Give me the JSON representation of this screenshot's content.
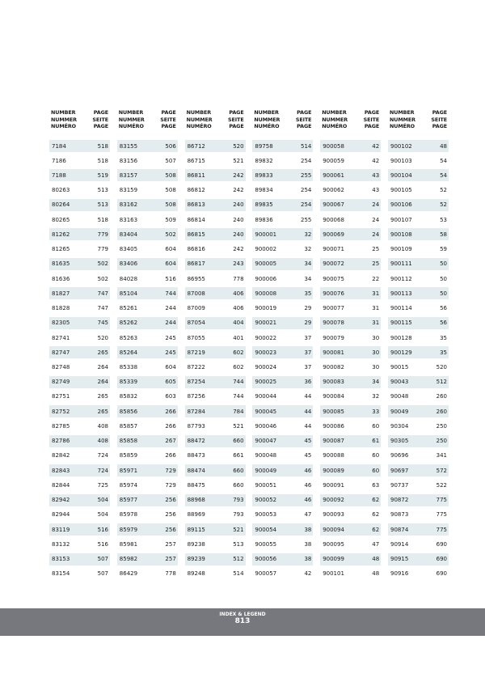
{
  "header": {
    "number": "NUMBER\nNUMMER\nNUMÉRO",
    "page": "PAGE\nSEITE\nPAGE"
  },
  "colors": {
    "row_shade": "#e3ecee",
    "footer_band": "#77787d"
  },
  "columns": [
    [
      [
        "7184",
        "518"
      ],
      [
        "7186",
        "518"
      ],
      [
        "7188",
        "519"
      ],
      [
        "80263",
        "513"
      ],
      [
        "80264",
        "513"
      ],
      [
        "80265",
        "518"
      ],
      [
        "81262",
        "779"
      ],
      [
        "81265",
        "779"
      ],
      [
        "81635",
        "502"
      ],
      [
        "81636",
        "502"
      ],
      [
        "81827",
        "747"
      ],
      [
        "81828",
        "747"
      ],
      [
        "82305",
        "745"
      ],
      [
        "82741",
        "520"
      ],
      [
        "82747",
        "265"
      ],
      [
        "82748",
        "264"
      ],
      [
        "82749",
        "264"
      ],
      [
        "82751",
        "265"
      ],
      [
        "82752",
        "265"
      ],
      [
        "82785",
        "408"
      ],
      [
        "82786",
        "408"
      ],
      [
        "82842",
        "724"
      ],
      [
        "82843",
        "724"
      ],
      [
        "82844",
        "725"
      ],
      [
        "82942",
        "504"
      ],
      [
        "82944",
        "504"
      ],
      [
        "83119",
        "516"
      ],
      [
        "83132",
        "516"
      ],
      [
        "83153",
        "507"
      ],
      [
        "83154",
        "507"
      ]
    ],
    [
      [
        "83155",
        "506"
      ],
      [
        "83156",
        "507"
      ],
      [
        "83157",
        "508"
      ],
      [
        "83159",
        "508"
      ],
      [
        "83162",
        "508"
      ],
      [
        "83163",
        "509"
      ],
      [
        "83404",
        "502"
      ],
      [
        "83405",
        "604"
      ],
      [
        "83406",
        "604"
      ],
      [
        "84028",
        "516"
      ],
      [
        "85104",
        "744"
      ],
      [
        "85261",
        "244"
      ],
      [
        "85262",
        "244"
      ],
      [
        "85263",
        "245"
      ],
      [
        "85264",
        "245"
      ],
      [
        "85338",
        "604"
      ],
      [
        "85339",
        "605"
      ],
      [
        "85832",
        "603"
      ],
      [
        "85856",
        "266"
      ],
      [
        "85857",
        "266"
      ],
      [
        "85858",
        "267"
      ],
      [
        "85859",
        "266"
      ],
      [
        "85971",
        "729"
      ],
      [
        "85974",
        "729"
      ],
      [
        "85977",
        "256"
      ],
      [
        "85978",
        "256"
      ],
      [
        "85979",
        "256"
      ],
      [
        "85981",
        "257"
      ],
      [
        "85982",
        "257"
      ],
      [
        "86429",
        "778"
      ]
    ],
    [
      [
        "86712",
        "520"
      ],
      [
        "86715",
        "521"
      ],
      [
        "86811",
        "242"
      ],
      [
        "86812",
        "242"
      ],
      [
        "86813",
        "240"
      ],
      [
        "86814",
        "240"
      ],
      [
        "86815",
        "240"
      ],
      [
        "86816",
        "242"
      ],
      [
        "86817",
        "243"
      ],
      [
        "86955",
        "778"
      ],
      [
        "87008",
        "406"
      ],
      [
        "87009",
        "406"
      ],
      [
        "87054",
        "404"
      ],
      [
        "87055",
        "401"
      ],
      [
        "87219",
        "602"
      ],
      [
        "87222",
        "602"
      ],
      [
        "87254",
        "744"
      ],
      [
        "87256",
        "744"
      ],
      [
        "87284",
        "784"
      ],
      [
        "87793",
        "521"
      ],
      [
        "88472",
        "660"
      ],
      [
        "88473",
        "661"
      ],
      [
        "88474",
        "660"
      ],
      [
        "88475",
        "660"
      ],
      [
        "88968",
        "793"
      ],
      [
        "88969",
        "793"
      ],
      [
        "89115",
        "521"
      ],
      [
        "89238",
        "513"
      ],
      [
        "89239",
        "512"
      ],
      [
        "89248",
        "514"
      ]
    ],
    [
      [
        "89758",
        "514"
      ],
      [
        "89832",
        "254"
      ],
      [
        "89833",
        "255"
      ],
      [
        "89834",
        "254"
      ],
      [
        "89835",
        "254"
      ],
      [
        "89836",
        "255"
      ],
      [
        "900001",
        "32"
      ],
      [
        "900002",
        "32"
      ],
      [
        "900005",
        "34"
      ],
      [
        "900006",
        "34"
      ],
      [
        "900008",
        "35"
      ],
      [
        "900019",
        "29"
      ],
      [
        "900021",
        "29"
      ],
      [
        "900022",
        "37"
      ],
      [
        "900023",
        "37"
      ],
      [
        "900024",
        "37"
      ],
      [
        "900025",
        "36"
      ],
      [
        "900044",
        "44"
      ],
      [
        "900045",
        "44"
      ],
      [
        "900046",
        "44"
      ],
      [
        "900047",
        "45"
      ],
      [
        "900048",
        "45"
      ],
      [
        "900049",
        "46"
      ],
      [
        "900051",
        "46"
      ],
      [
        "900052",
        "46"
      ],
      [
        "900053",
        "47"
      ],
      [
        "900054",
        "38"
      ],
      [
        "900055",
        "38"
      ],
      [
        "900056",
        "38"
      ],
      [
        "900057",
        "42"
      ]
    ],
    [
      [
        "900058",
        "42"
      ],
      [
        "900059",
        "42"
      ],
      [
        "900061",
        "43"
      ],
      [
        "900062",
        "43"
      ],
      [
        "900067",
        "24"
      ],
      [
        "900068",
        "24"
      ],
      [
        "900069",
        "24"
      ],
      [
        "900071",
        "25"
      ],
      [
        "900072",
        "25"
      ],
      [
        "900075",
        "22"
      ],
      [
        "900076",
        "31"
      ],
      [
        "900077",
        "31"
      ],
      [
        "900078",
        "31"
      ],
      [
        "900079",
        "30"
      ],
      [
        "900081",
        "30"
      ],
      [
        "900082",
        "30"
      ],
      [
        "900083",
        "34"
      ],
      [
        "900084",
        "32"
      ],
      [
        "900085",
        "33"
      ],
      [
        "900086",
        "60"
      ],
      [
        "900087",
        "61"
      ],
      [
        "900088",
        "60"
      ],
      [
        "900089",
        "60"
      ],
      [
        "900091",
        "63"
      ],
      [
        "900092",
        "62"
      ],
      [
        "900093",
        "62"
      ],
      [
        "900094",
        "62"
      ],
      [
        "900095",
        "47"
      ],
      [
        "900099",
        "48"
      ],
      [
        "900101",
        "48"
      ]
    ],
    [
      [
        "900102",
        "48"
      ],
      [
        "900103",
        "54"
      ],
      [
        "900104",
        "54"
      ],
      [
        "900105",
        "52"
      ],
      [
        "900106",
        "52"
      ],
      [
        "900107",
        "53"
      ],
      [
        "900108",
        "58"
      ],
      [
        "900109",
        "59"
      ],
      [
        "900111",
        "50"
      ],
      [
        "900112",
        "50"
      ],
      [
        "900113",
        "50"
      ],
      [
        "900114",
        "56"
      ],
      [
        "900115",
        "56"
      ],
      [
        "900128",
        "35"
      ],
      [
        "900129",
        "35"
      ],
      [
        "90015",
        "520"
      ],
      [
        "90043",
        "512"
      ],
      [
        "90048",
        "260"
      ],
      [
        "90049",
        "260"
      ],
      [
        "90304",
        "250"
      ],
      [
        "90305",
        "250"
      ],
      [
        "90696",
        "341"
      ],
      [
        "90697",
        "572"
      ],
      [
        "90737",
        "522"
      ],
      [
        "90872",
        "775"
      ],
      [
        "90873",
        "775"
      ],
      [
        "90874",
        "775"
      ],
      [
        "90914",
        "690"
      ],
      [
        "90915",
        "690"
      ],
      [
        "90916",
        "690"
      ]
    ]
  ],
  "footer": {
    "section": "INDEX & LEGEND",
    "page_number": "813"
  }
}
